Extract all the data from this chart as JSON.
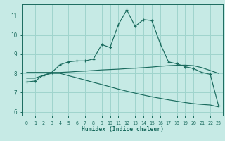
{
  "xlabel": "Humidex (Indice chaleur)",
  "ylabel": "",
  "bg_color": "#c6eae5",
  "grid_color": "#9fd4cd",
  "line_color": "#1a6b5e",
  "xlim": [
    -0.5,
    23.5
  ],
  "ylim": [
    5.8,
    11.6
  ],
  "xticks": [
    0,
    1,
    2,
    3,
    4,
    5,
    6,
    7,
    8,
    9,
    10,
    11,
    12,
    13,
    14,
    15,
    16,
    17,
    18,
    19,
    20,
    21,
    22,
    23
  ],
  "yticks": [
    6,
    7,
    8,
    9,
    10,
    11
  ],
  "line1_x": [
    0,
    1,
    2,
    3,
    4,
    5,
    6,
    7,
    8,
    9,
    10,
    11,
    12,
    13,
    14,
    15,
    16,
    17,
    18,
    19,
    20,
    21,
    22,
    23
  ],
  "line1_y": [
    7.55,
    7.6,
    7.9,
    8.05,
    8.45,
    8.6,
    8.65,
    8.65,
    8.75,
    9.5,
    9.35,
    10.55,
    11.3,
    10.45,
    10.8,
    10.75,
    9.55,
    8.6,
    8.5,
    8.35,
    8.25,
    8.05,
    7.95,
    6.3
  ],
  "line2_x": [
    0,
    1,
    2,
    3,
    4,
    5,
    6,
    7,
    8,
    9,
    10,
    11,
    12,
    13,
    14,
    15,
    16,
    17,
    18,
    19,
    20,
    21,
    22,
    23
  ],
  "line2_y": [
    8.05,
    8.05,
    8.05,
    8.05,
    8.05,
    8.07,
    8.1,
    8.12,
    8.15,
    8.18,
    8.2,
    8.22,
    8.25,
    8.27,
    8.3,
    8.33,
    8.37,
    8.4,
    8.42,
    8.43,
    8.4,
    8.3,
    8.15,
    8.0
  ],
  "line3_x": [
    0,
    1,
    2,
    3,
    4,
    5,
    6,
    7,
    8,
    9,
    10,
    11,
    12,
    13,
    14,
    15,
    16,
    17,
    18,
    19,
    20,
    21,
    22,
    23
  ],
  "line3_y": [
    7.75,
    7.75,
    7.9,
    8.0,
    8.0,
    7.88,
    7.77,
    7.65,
    7.53,
    7.42,
    7.3,
    7.18,
    7.07,
    6.97,
    6.87,
    6.78,
    6.7,
    6.62,
    6.55,
    6.48,
    6.42,
    6.38,
    6.35,
    6.25
  ]
}
